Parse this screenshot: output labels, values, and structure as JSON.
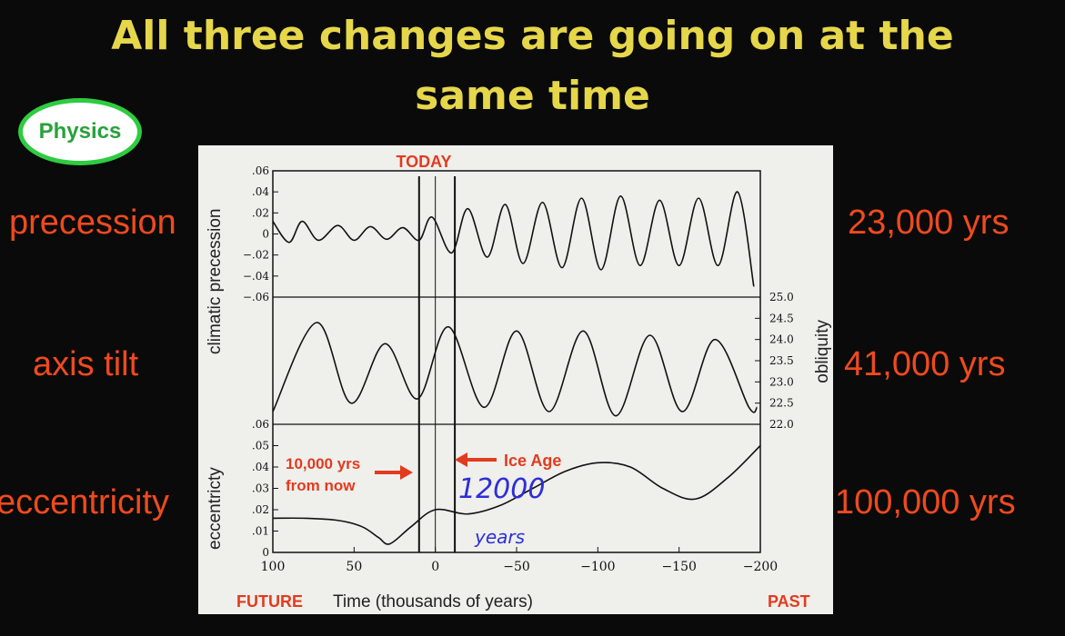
{
  "title": {
    "line1": "All three changes are going on at the",
    "line2": "same time"
  },
  "badge": "Physics",
  "left_labels": [
    "precession",
    "axis tilt",
    "eccentricity"
  ],
  "right_labels": [
    "23,000 yrs",
    "41,000 yrs",
    "100,000 yrs"
  ],
  "colors": {
    "title": "#e6d64a",
    "labels": "#ef4a1e",
    "badge_border": "#2ecc40",
    "annotation_red": "#e23b1f",
    "handwriting_blue": "#2d2ed8"
  },
  "chart": {
    "today_label": "TODAY",
    "precession_ylabel": "climatic precession",
    "precession_ticks": [
      ".06",
      ".04",
      ".02",
      "0",
      "−.02",
      "−.04",
      "−.06"
    ],
    "obliquity_ylabel": "obliquity",
    "obliquity_ticks": [
      "25.0",
      "24.5",
      "24.0",
      "23.5",
      "23.0",
      "22.5",
      "22.0"
    ],
    "eccentricity_ylabel": "eccentricty",
    "eccentricity_ticks": [
      ".06",
      ".05",
      ".04",
      ".03",
      ".02",
      ".01",
      "0"
    ],
    "x_ticks": [
      "100",
      "50",
      "0",
      "−50",
      "−100",
      "−150",
      "−200"
    ],
    "xlabel": "Time (thousands of years)",
    "future_label": "FUTURE",
    "past_label": "PAST",
    "annotation_future": [
      "10,000 yrs",
      "from now"
    ],
    "annotation_iceage": "Ice Age",
    "handwritten": [
      "12000",
      "years"
    ]
  },
  "chart_data": [
    {
      "type": "line",
      "title": "",
      "xlabel": "Time (thousands of years)",
      "ylabel": "climatic precession",
      "xlim": [
        100,
        -200
      ],
      "ylim": [
        -0.06,
        0.06
      ],
      "x": [
        100,
        90,
        82,
        72,
        60,
        50,
        40,
        30,
        20,
        10,
        2,
        -10,
        -20,
        -32,
        -43,
        -54,
        -66,
        -78,
        -90,
        -102,
        -114,
        -126,
        -138,
        -150,
        -162,
        -174,
        -186,
        -196
      ],
      "series": [
        {
          "values": [
            0.012,
            -0.008,
            0.012,
            -0.006,
            0.008,
            -0.006,
            0.007,
            -0.005,
            0.006,
            -0.006,
            0.016,
            -0.018,
            0.024,
            -0.022,
            0.028,
            -0.028,
            0.03,
            -0.032,
            0.034,
            -0.034,
            0.036,
            -0.03,
            0.032,
            -0.03,
            0.034,
            -0.03,
            0.04,
            -0.05
          ]
        }
      ]
    },
    {
      "type": "line",
      "title": "",
      "xlabel": "Time (thousands of years)",
      "ylabel": "obliquity",
      "xlim": [
        100,
        -200
      ],
      "ylim": [
        22.0,
        25.0
      ],
      "x": [
        100,
        73,
        52,
        31,
        11,
        -8,
        -30,
        -50,
        -70,
        -91,
        -111,
        -132,
        -152,
        -172,
        -193,
        -198
      ],
      "series": [
        {
          "values": [
            22.3,
            24.4,
            22.5,
            23.9,
            22.6,
            24.3,
            22.4,
            24.2,
            22.3,
            24.2,
            22.2,
            24.1,
            22.3,
            24.0,
            22.4,
            22.4
          ]
        }
      ]
    },
    {
      "type": "line",
      "title": "",
      "xlabel": "Time (thousands of years)",
      "ylabel": "eccentricty",
      "xlim": [
        100,
        -200
      ],
      "ylim": [
        0,
        0.06
      ],
      "x": [
        100,
        80,
        60,
        45,
        35,
        28,
        15,
        0,
        -20,
        -40,
        -60,
        -80,
        -100,
        -120,
        -140,
        -160,
        -180,
        -200
      ],
      "series": [
        {
          "values": [
            0.016,
            0.016,
            0.015,
            0.012,
            0.007,
            0.004,
            0.012,
            0.02,
            0.018,
            0.022,
            0.03,
            0.038,
            0.042,
            0.04,
            0.03,
            0.025,
            0.035,
            0.05
          ]
        }
      ]
    }
  ]
}
